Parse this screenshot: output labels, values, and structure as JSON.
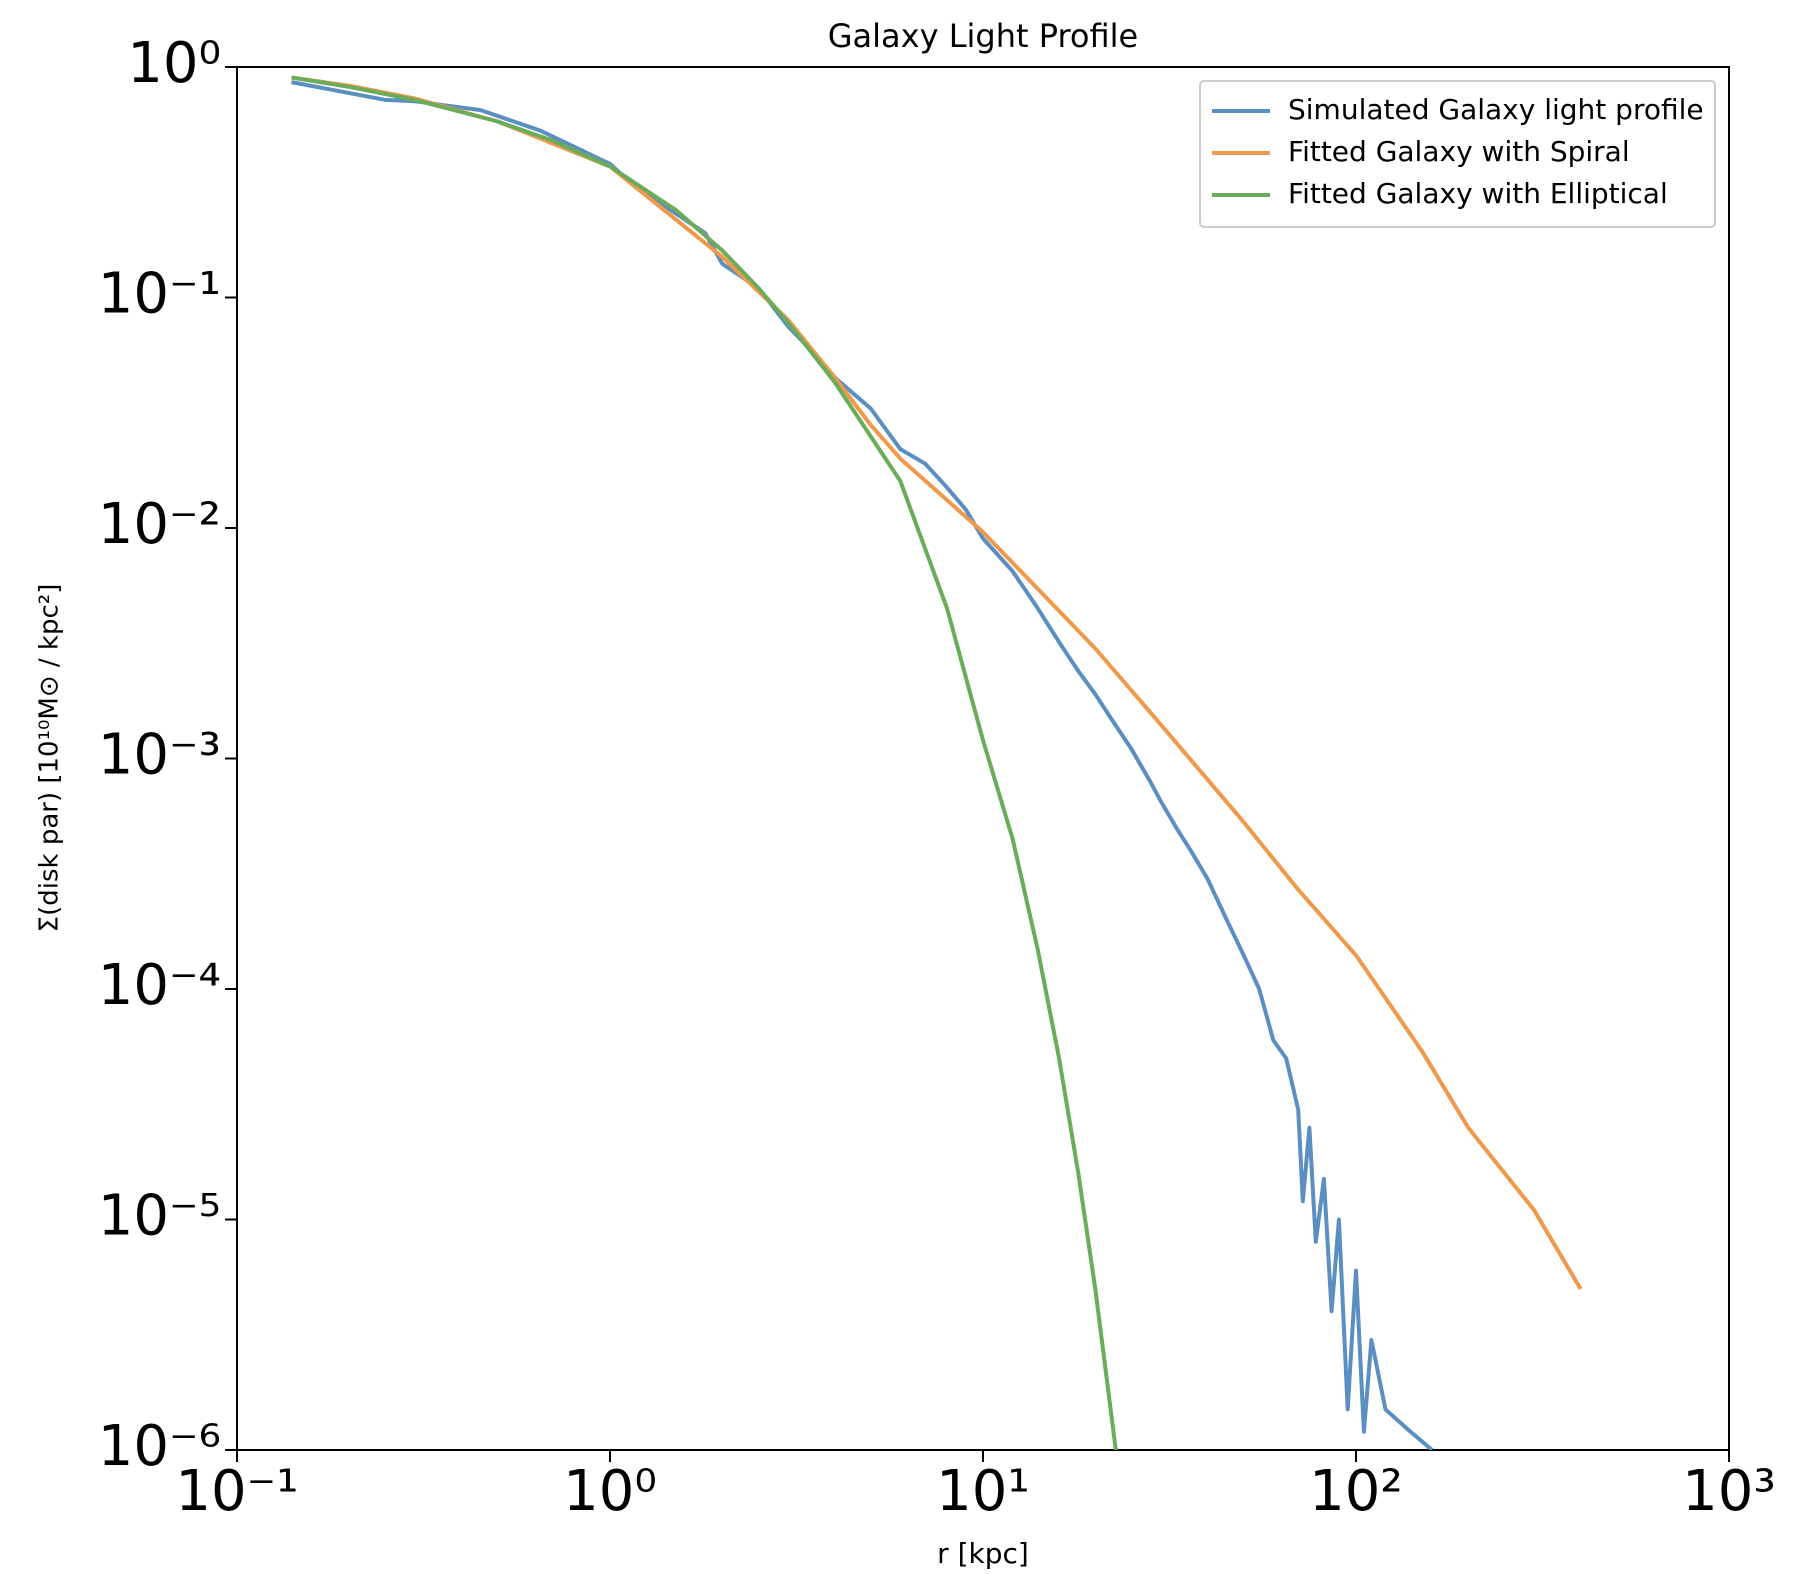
{
  "chart_data": {
    "type": "line",
    "title": "Galaxy Light Profile",
    "xlabel": "r [kpc]",
    "ylabel": "Σ(disk par) [10¹⁰M⊙ / kpc²]",
    "xscale": "log",
    "yscale": "log",
    "xlim": [
      0.1,
      1000
    ],
    "ylim": [
      1e-06,
      1
    ],
    "xticks": [
      {
        "value": 0.1,
        "label": "10⁻¹"
      },
      {
        "value": 1,
        "label": "10⁰"
      },
      {
        "value": 10,
        "label": "10¹"
      },
      {
        "value": 100,
        "label": "10²"
      },
      {
        "value": 1000,
        "label": "10³"
      }
    ],
    "yticks": [
      {
        "value": 1e-06,
        "label": "10⁻⁶"
      },
      {
        "value": 1e-05,
        "label": "10⁻⁵"
      },
      {
        "value": 0.0001,
        "label": "10⁻⁴"
      },
      {
        "value": 0.001,
        "label": "10⁻³"
      },
      {
        "value": 0.01,
        "label": "10⁻²"
      },
      {
        "value": 0.1,
        "label": "10⁻¹"
      },
      {
        "value": 1,
        "label": "10⁰"
      }
    ],
    "legend": "upper right",
    "series": [
      {
        "name": "Simulated Galaxy light profile",
        "color": "#5b8fc2",
        "x": [
          0.14,
          0.25,
          0.3,
          0.45,
          0.65,
          1,
          1.1,
          1.4,
          1.8,
          2,
          2.5,
          3,
          3.5,
          4,
          5,
          6,
          7,
          8,
          9,
          10,
          12,
          14,
          16,
          18,
          20,
          22,
          25,
          28,
          30,
          33,
          36,
          40,
          45,
          50,
          55,
          60,
          65,
          70,
          72,
          75,
          78,
          82,
          86,
          90,
          95,
          100,
          105,
          110,
          120,
          140,
          160
        ],
        "values": [
          0.86,
          0.72,
          0.71,
          0.65,
          0.53,
          0.38,
          0.33,
          0.25,
          0.19,
          0.14,
          0.11,
          0.075,
          0.058,
          0.045,
          0.033,
          0.022,
          0.019,
          0.015,
          0.012,
          0.009,
          0.0065,
          0.0045,
          0.0032,
          0.0024,
          0.0019,
          0.0015,
          0.0011,
          0.0008,
          0.00065,
          0.0005,
          0.0004,
          0.0003,
          0.0002,
          0.00014,
          0.0001,
          6e-05,
          5e-05,
          3e-05,
          1.2e-05,
          2.5e-05,
          8e-06,
          1.5e-05,
          4e-06,
          1e-05,
          1.5e-06,
          6e-06,
          1.2e-06,
          3e-06,
          1.5e-06,
          1.2e-06,
          1e-06
        ]
      },
      {
        "name": "Fitted Galaxy with Spiral",
        "color": "#f0994a",
        "x": [
          0.14,
          0.2,
          0.3,
          0.5,
          1,
          2,
          3,
          4,
          5,
          6,
          10,
          20,
          30,
          50,
          70,
          100,
          150,
          200,
          300,
          400
        ],
        "values": [
          0.9,
          0.83,
          0.73,
          0.58,
          0.37,
          0.15,
          0.08,
          0.045,
          0.028,
          0.02,
          0.0096,
          0.003,
          0.0014,
          0.00053,
          0.00027,
          0.00014,
          5.4e-05,
          2.5e-05,
          1.1e-05,
          5e-06
        ]
      },
      {
        "name": "Fitted Galaxy with Elliptical",
        "color": "#6aac5a",
        "x": [
          0.14,
          0.2,
          0.3,
          0.5,
          0.7,
          1,
          1.5,
          2,
          2.5,
          3,
          4,
          5,
          6,
          8,
          10,
          12,
          14,
          16,
          18,
          20,
          22.7
        ],
        "values": [
          0.9,
          0.82,
          0.72,
          0.58,
          0.48,
          0.37,
          0.24,
          0.16,
          0.11,
          0.078,
          0.043,
          0.025,
          0.016,
          0.0045,
          0.0012,
          0.00045,
          0.00015,
          5e-05,
          1.6e-05,
          5e-06,
          1e-06
        ]
      }
    ]
  }
}
